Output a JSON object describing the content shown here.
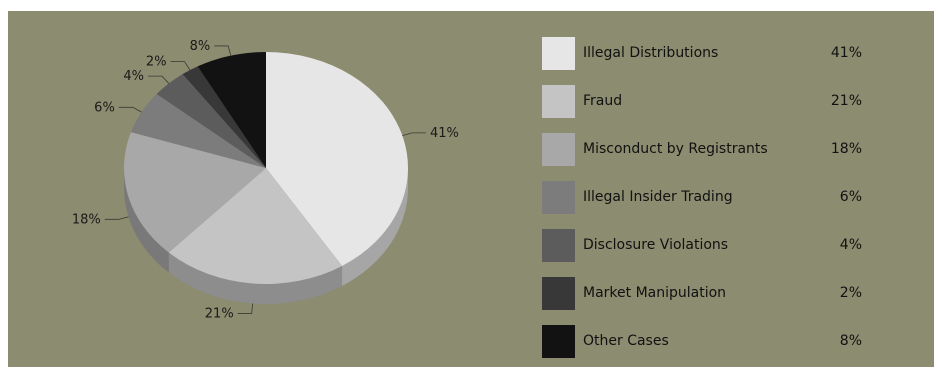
{
  "chart_data": {
    "type": "pie",
    "categories": [
      "Illegal Distributions",
      "Fraud",
      "Misconduct by Registrants",
      "Illegal Insider Trading",
      "Disclosure Violations",
      "Market Manipulation",
      "Other Cases"
    ],
    "values": [
      41,
      21,
      18,
      6,
      4,
      2,
      8
    ],
    "value_labels": [
      "41%",
      "21%",
      "18%",
      "6%",
      "4%",
      "2%",
      "8%"
    ],
    "colors": [
      "#e6e6e6",
      "#c4c4c4",
      "#a8a8a8",
      "#7c7c7c",
      "#5c5c5c",
      "#383838",
      "#121212"
    ],
    "legend_position": "right",
    "style": "3d-pie"
  },
  "colors": {
    "background": "#8c8c70"
  }
}
